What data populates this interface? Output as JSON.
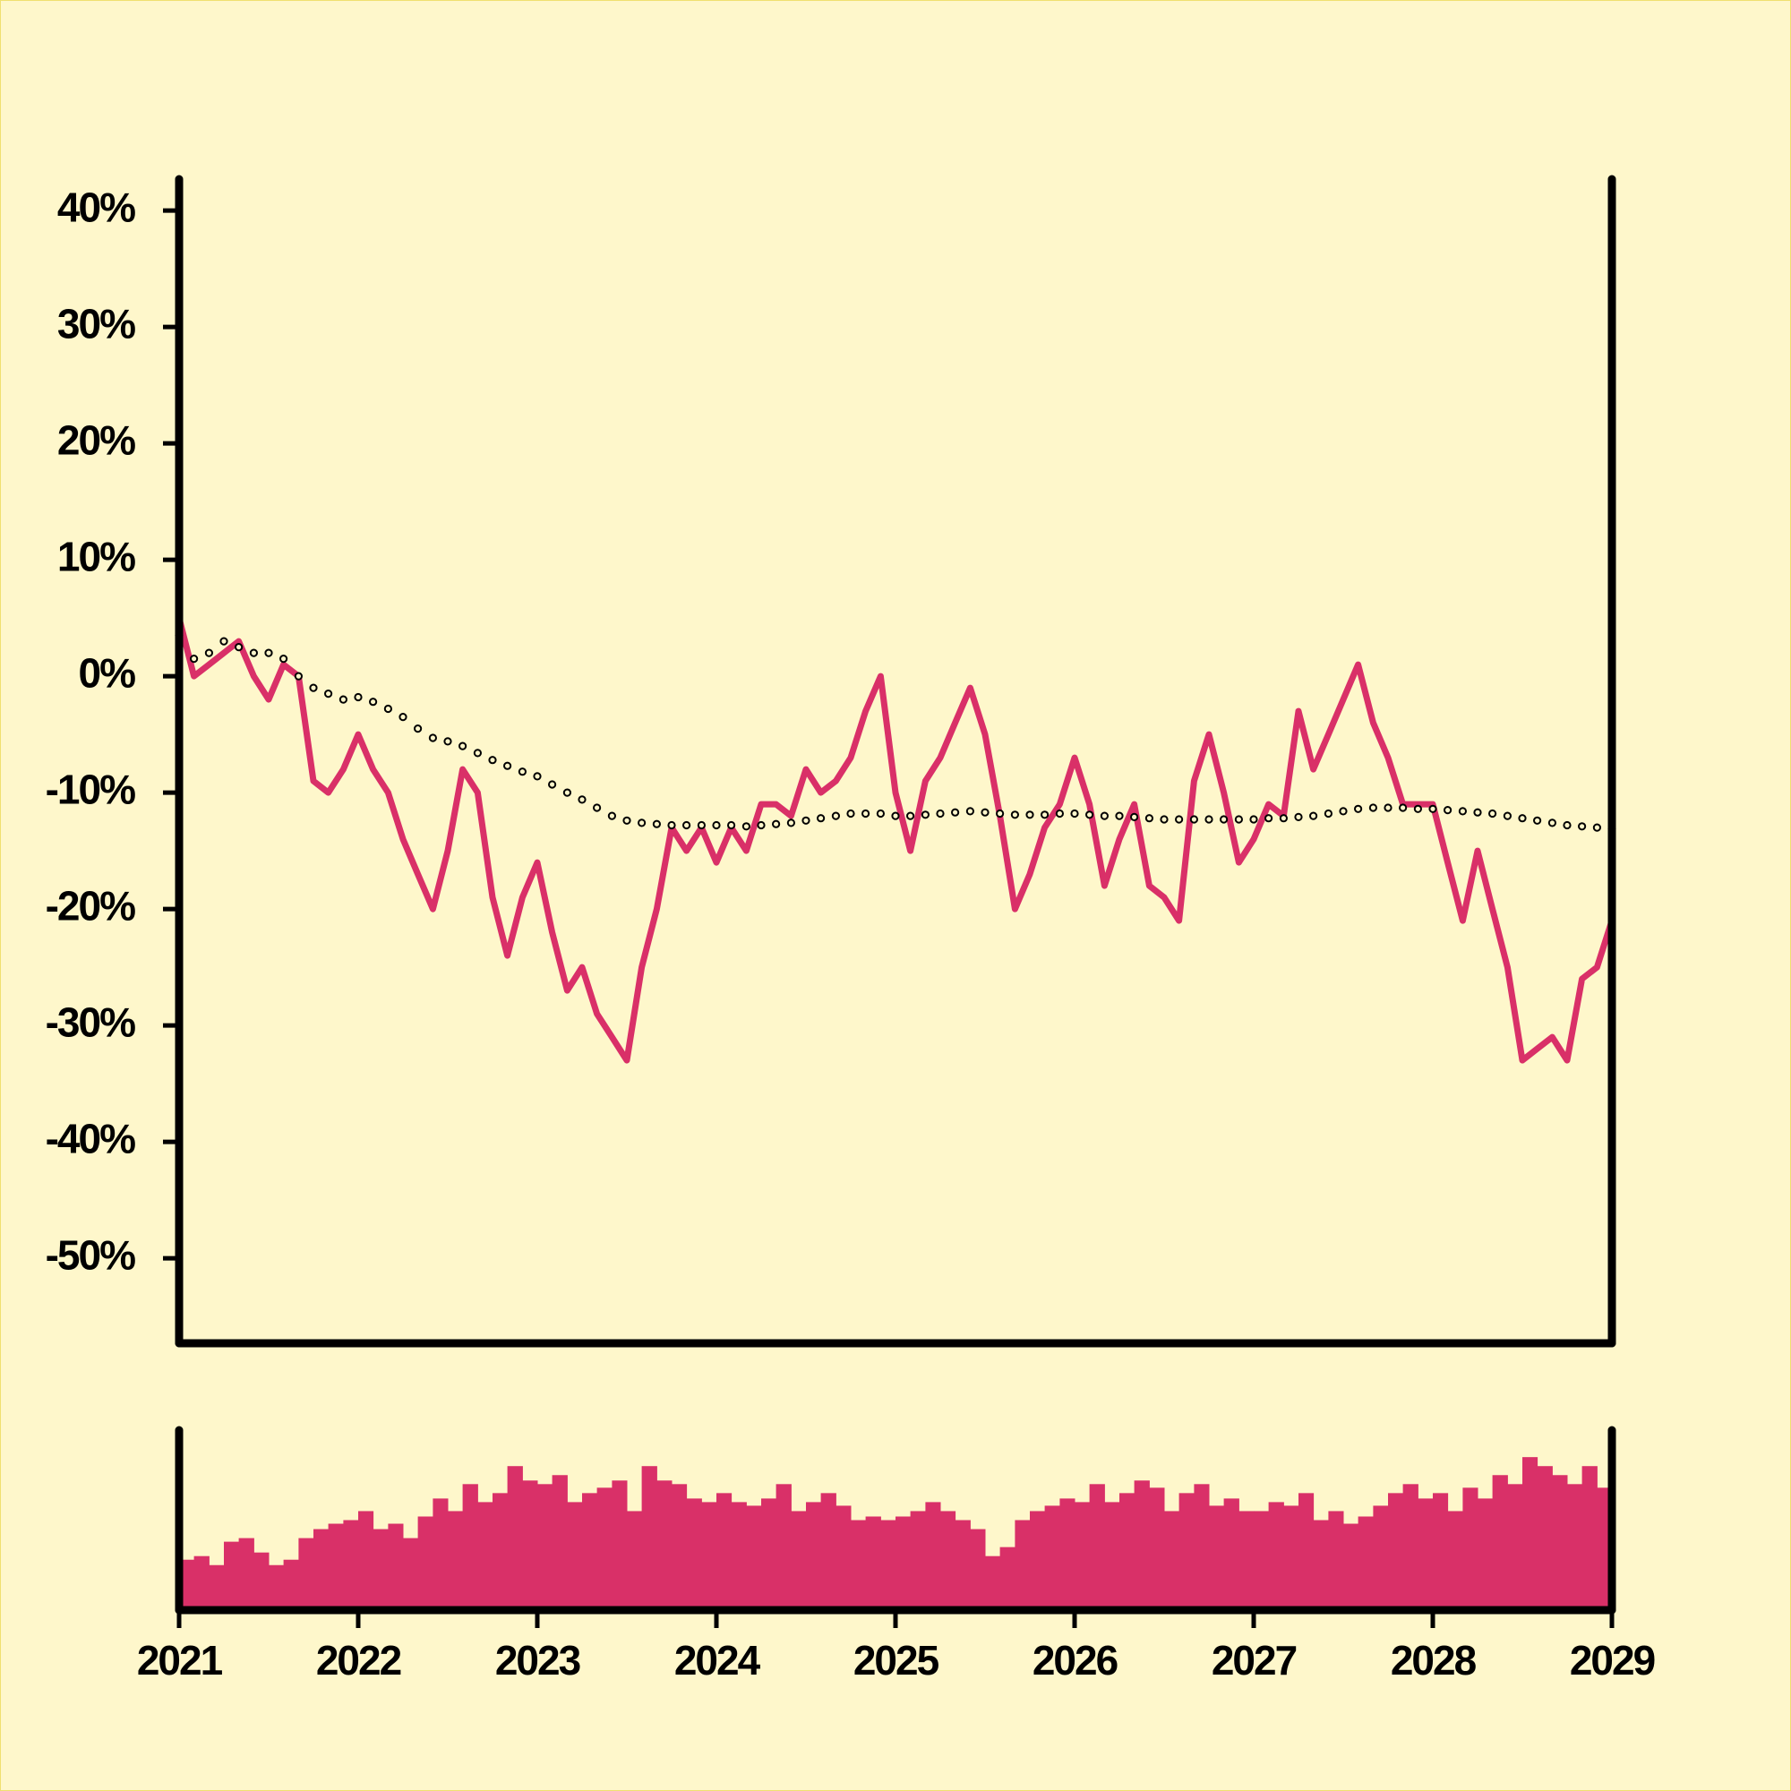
{
  "chart_data": [
    {
      "type": "line",
      "xlim": [
        2021,
        2029
      ],
      "ylim": [
        -57.3,
        42.7
      ],
      "yticks": [
        {
          "value": 40,
          "label": "40%"
        },
        {
          "value": 30,
          "label": "30%"
        },
        {
          "value": 20,
          "label": "20%"
        },
        {
          "value": 10,
          "label": "10%"
        },
        {
          "value": 0,
          "label": "0%"
        },
        {
          "value": -10,
          "label": "-10%"
        },
        {
          "value": -20,
          "label": "-20%"
        },
        {
          "value": -30,
          "label": "-30%"
        },
        {
          "value": -40,
          "label": "-40%"
        },
        {
          "value": -50,
          "label": "-50%"
        }
      ],
      "x": [
        2021,
        2021.083,
        2021.167,
        2021.25,
        2021.333,
        2021.417,
        2021.5,
        2021.583,
        2021.667,
        2021.75,
        2021.833,
        2021.917,
        2022,
        2022.083,
        2022.167,
        2022.25,
        2022.333,
        2022.417,
        2022.5,
        2022.583,
        2022.667,
        2022.75,
        2022.833,
        2022.917,
        2023,
        2023.083,
        2023.167,
        2023.25,
        2023.333,
        2023.417,
        2023.5,
        2023.583,
        2023.667,
        2023.75,
        2023.833,
        2023.917,
        2024,
        2024.083,
        2024.167,
        2024.25,
        2024.333,
        2024.417,
        2024.5,
        2024.583,
        2024.667,
        2024.75,
        2024.833,
        2024.917,
        2025,
        2025.083,
        2025.167,
        2025.25,
        2025.333,
        2025.417,
        2025.5,
        2025.583,
        2025.667,
        2025.75,
        2025.833,
        2025.917,
        2026,
        2026.083,
        2026.167,
        2026.25,
        2026.333,
        2026.417,
        2026.5,
        2026.583,
        2026.667,
        2026.75,
        2026.833,
        2026.917,
        2027,
        2027.083,
        2027.167,
        2027.25,
        2027.333,
        2027.417,
        2027.5,
        2027.583,
        2027.667,
        2027.75,
        2027.833,
        2027.917,
        2028,
        2028.083,
        2028.167,
        2028.25,
        2028.333,
        2028.417,
        2028.5,
        2028.583,
        2028.667,
        2028.75,
        2028.833,
        2028.917,
        2029
      ],
      "series": [
        {
          "color": "#d93068",
          "style": "line",
          "values": [
            5,
            0,
            1,
            2,
            3,
            0,
            -2,
            1,
            0,
            -9,
            -10,
            -8,
            -5,
            -8,
            -10,
            -14,
            -17,
            -20,
            -15,
            -8,
            -10,
            -19,
            -24,
            -19,
            -16,
            -22,
            -27,
            -25,
            -29,
            -31,
            -33,
            -25,
            -20,
            -13,
            -15,
            -13,
            -16,
            -13,
            -15,
            -11,
            -11,
            -12,
            -8,
            -10,
            -9,
            -7,
            -3,
            0,
            -10,
            -15,
            -9,
            -7,
            -4,
            -1,
            -5,
            -12,
            -20,
            -17,
            -13,
            -11,
            -7,
            -11,
            -18,
            -14,
            -11,
            -18,
            -19,
            -21,
            -9,
            -5,
            -10,
            -16,
            -14,
            -11,
            -12,
            -3,
            -8,
            -5,
            -2,
            1,
            -4,
            -7,
            -11,
            -11,
            -11,
            -16,
            -21,
            -15,
            -20,
            -25,
            -33,
            -32,
            -31,
            -33,
            -26,
            -25,
            -21
          ]
        },
        {
          "color": "#000000",
          "style": "dots",
          "values": [
            3.5,
            1.5,
            2,
            3,
            2.5,
            2,
            2,
            1.5,
            0,
            -1,
            -1.5,
            -2,
            -1.8,
            -2.2,
            -2.8,
            -3.5,
            -4.5,
            -5.3,
            -5.6,
            -6,
            -6.6,
            -7.2,
            -7.7,
            -8.2,
            -8.6,
            -9.3,
            -10,
            -10.6,
            -11.3,
            -12,
            -12.4,
            -12.6,
            -12.7,
            -12.8,
            -12.8,
            -12.8,
            -12.8,
            -12.8,
            -12.9,
            -12.8,
            -12.7,
            -12.6,
            -12.4,
            -12.2,
            -12,
            -11.8,
            -11.8,
            -11.8,
            -12,
            -12,
            -11.9,
            -11.8,
            -11.7,
            -11.6,
            -11.7,
            -11.8,
            -11.9,
            -11.9,
            -11.9,
            -11.8,
            -11.8,
            -11.9,
            -12,
            -12,
            -12.1,
            -12.2,
            -12.3,
            -12.3,
            -12.3,
            -12.3,
            -12.3,
            -12.3,
            -12.3,
            -12.2,
            -12.2,
            -12.1,
            -12,
            -11.8,
            -11.6,
            -11.4,
            -11.3,
            -11.3,
            -11.3,
            -11.4,
            -11.4,
            -11.5,
            -11.6,
            -11.7,
            -11.8,
            -12,
            -12.2,
            -12.4,
            -12.6,
            -12.8,
            -12.9,
            -13,
            -13.1
          ]
        }
      ]
    },
    {
      "type": "bar",
      "xlim": [
        2021,
        2029
      ],
      "xticks": [
        2021,
        2022,
        2023,
        2024,
        2025,
        2026,
        2027,
        2028,
        2029
      ],
      "ylim": [
        0,
        100
      ],
      "color": "#d93068",
      "x": [
        2021,
        2021.083,
        2021.167,
        2021.25,
        2021.333,
        2021.417,
        2021.5,
        2021.583,
        2021.667,
        2021.75,
        2021.833,
        2021.917,
        2022,
        2022.083,
        2022.167,
        2022.25,
        2022.333,
        2022.417,
        2022.5,
        2022.583,
        2022.667,
        2022.75,
        2022.833,
        2022.917,
        2023,
        2023.083,
        2023.167,
        2023.25,
        2023.333,
        2023.417,
        2023.5,
        2023.583,
        2023.667,
        2023.75,
        2023.833,
        2023.917,
        2024,
        2024.083,
        2024.167,
        2024.25,
        2024.333,
        2024.417,
        2024.5,
        2024.583,
        2024.667,
        2024.75,
        2024.833,
        2024.917,
        2025,
        2025.083,
        2025.167,
        2025.25,
        2025.333,
        2025.417,
        2025.5,
        2025.583,
        2025.667,
        2025.75,
        2025.833,
        2025.917,
        2026,
        2026.083,
        2026.167,
        2026.25,
        2026.333,
        2026.417,
        2026.5,
        2026.583,
        2026.667,
        2026.75,
        2026.833,
        2026.917,
        2027,
        2027.083,
        2027.167,
        2027.25,
        2027.333,
        2027.417,
        2027.5,
        2027.583,
        2027.667,
        2027.75,
        2027.833,
        2027.917,
        2028,
        2028.083,
        2028.167,
        2028.25,
        2028.333,
        2028.417,
        2028.5,
        2028.583,
        2028.667,
        2028.75,
        2028.833,
        2028.917
      ],
      "values": [
        28,
        30,
        25,
        38,
        40,
        32,
        25,
        28,
        40,
        45,
        48,
        50,
        55,
        45,
        48,
        40,
        52,
        62,
        55,
        70,
        60,
        65,
        80,
        72,
        70,
        75,
        60,
        65,
        68,
        72,
        55,
        80,
        72,
        70,
        62,
        60,
        65,
        60,
        58,
        62,
        70,
        55,
        60,
        65,
        58,
        50,
        52,
        50,
        52,
        55,
        60,
        55,
        50,
        45,
        30,
        35,
        50,
        55,
        58,
        62,
        60,
        70,
        60,
        65,
        72,
        68,
        55,
        65,
        70,
        58,
        62,
        55,
        55,
        60,
        58,
        65,
        50,
        55,
        48,
        52,
        58,
        65,
        70,
        62,
        65,
        55,
        68,
        62,
        75,
        70,
        85,
        80,
        75,
        70,
        80,
        68
      ]
    }
  ]
}
